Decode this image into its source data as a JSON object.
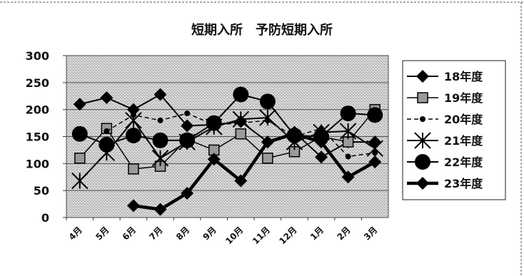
{
  "chart_data": {
    "type": "line",
    "title": "短期入所　予防短期入所",
    "categories": [
      "4月",
      "5月",
      "6月",
      "7月",
      "8月",
      "9月",
      "10月",
      "11月",
      "12月",
      "1月",
      "2月",
      "3月"
    ],
    "ylim": [
      0,
      300
    ],
    "yticks": [
      0,
      50,
      100,
      150,
      200,
      250,
      300
    ],
    "grid": true,
    "legend": "right",
    "series": [
      {
        "name": "18年度",
        "marker": "diamond",
        "values": [
          210,
          222,
          200,
          228,
          170,
          172,
          178,
          140,
          158,
          112,
          140,
          140
        ]
      },
      {
        "name": "19年度",
        "marker": "square",
        "values": [
          110,
          165,
          90,
          95,
          145,
          125,
          155,
          110,
          122,
          150,
          140,
          200
        ]
      },
      {
        "name": "20年度",
        "marker": "dot",
        "values": [
          null,
          160,
          190,
          180,
          193,
          172,
          175,
          180,
          150,
          165,
          113,
          120
        ]
      },
      {
        "name": "21年度",
        "marker": "asterisk",
        "values": [
          68,
          120,
          180,
          110,
          140,
          168,
          182,
          185,
          140,
          158,
          160,
          128
        ]
      },
      {
        "name": "22年度",
        "marker": "circle",
        "values": [
          155,
          135,
          152,
          143,
          143,
          175,
          228,
          215,
          152,
          150,
          193,
          190
        ]
      },
      {
        "name": "23年度",
        "marker": "diamond-thick",
        "values": [
          null,
          null,
          22,
          15,
          45,
          108,
          68,
          140,
          155,
          140,
          75,
          103
        ]
      }
    ]
  }
}
